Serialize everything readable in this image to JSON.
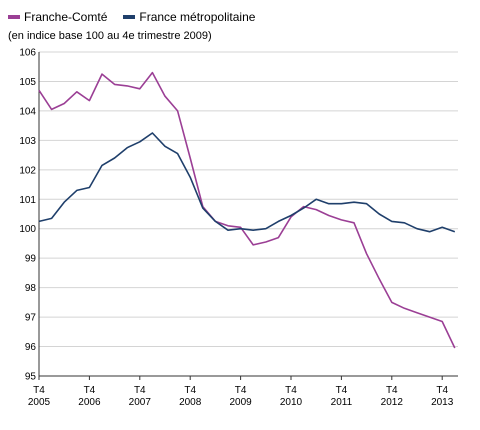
{
  "chart_data": {
    "type": "line",
    "subtitle": "(en indice base 100 au 4e trimestre 2009)",
    "x": [
      "T4 2005",
      "T1 2006",
      "T2 2006",
      "T3 2006",
      "T4 2006",
      "T1 2007",
      "T2 2007",
      "T3 2007",
      "T4 2007",
      "T1 2008",
      "T2 2008",
      "T3 2008",
      "T4 2008",
      "T1 2009",
      "T2 2009",
      "T3 2009",
      "T4 2009",
      "T1 2010",
      "T2 2010",
      "T3 2010",
      "T4 2010",
      "T1 2011",
      "T2 2011",
      "T3 2011",
      "T4 2011",
      "T1 2012",
      "T2 2012",
      "T3 2012",
      "T4 2012",
      "T1 2013",
      "T2 2013",
      "T3 2013",
      "T4 2013",
      "T1 2014"
    ],
    "series": [
      {
        "name": "Franche-Comté",
        "color": "#9b3f95",
        "values": [
          104.7,
          104.05,
          104.25,
          104.65,
          104.35,
          105.25,
          104.9,
          104.85,
          104.75,
          105.3,
          104.5,
          104.0,
          102.4,
          100.75,
          100.25,
          100.1,
          100.05,
          99.45,
          99.55,
          99.7,
          100.4,
          100.75,
          100.65,
          100.45,
          100.3,
          100.2,
          99.15,
          98.3,
          97.5,
          97.3,
          97.15,
          97.0,
          96.85,
          95.95
        ]
      },
      {
        "name": "France métropolitaine",
        "color": "#1f3f6b",
        "values": [
          100.25,
          100.35,
          100.9,
          101.3,
          101.4,
          102.15,
          102.4,
          102.75,
          102.95,
          103.25,
          102.8,
          102.55,
          101.75,
          100.7,
          100.25,
          99.95,
          100.0,
          99.95,
          100.0,
          100.25,
          100.45,
          100.7,
          101.0,
          100.85,
          100.85,
          100.9,
          100.85,
          100.5,
          100.25,
          100.2,
          100.0,
          99.9,
          100.05,
          99.9
        ]
      }
    ],
    "ylim": [
      95,
      106
    ],
    "yticks": [
      "95",
      "96",
      "97",
      "98",
      "99",
      "100",
      "101",
      "102",
      "103",
      "104",
      "105",
      "106"
    ],
    "xticks": [
      {
        "index": 0,
        "line1": "T4",
        "line2": "2005"
      },
      {
        "index": 4,
        "line1": "T4",
        "line2": "2006"
      },
      {
        "index": 8,
        "line1": "T4",
        "line2": "2007"
      },
      {
        "index": 12,
        "line1": "T4",
        "line2": "2008"
      },
      {
        "index": 16,
        "line1": "T4",
        "line2": "2009"
      },
      {
        "index": 20,
        "line1": "T4",
        "line2": "2010"
      },
      {
        "index": 24,
        "line1": "T4",
        "line2": "2011"
      },
      {
        "index": 28,
        "line1": "T4",
        "line2": "2012"
      },
      {
        "index": 32,
        "line1": "T4",
        "line2": "2013"
      }
    ],
    "legend_position": "top-left",
    "grid": true,
    "grid_color": "#d4d4d4",
    "axis_color": "#333333"
  }
}
